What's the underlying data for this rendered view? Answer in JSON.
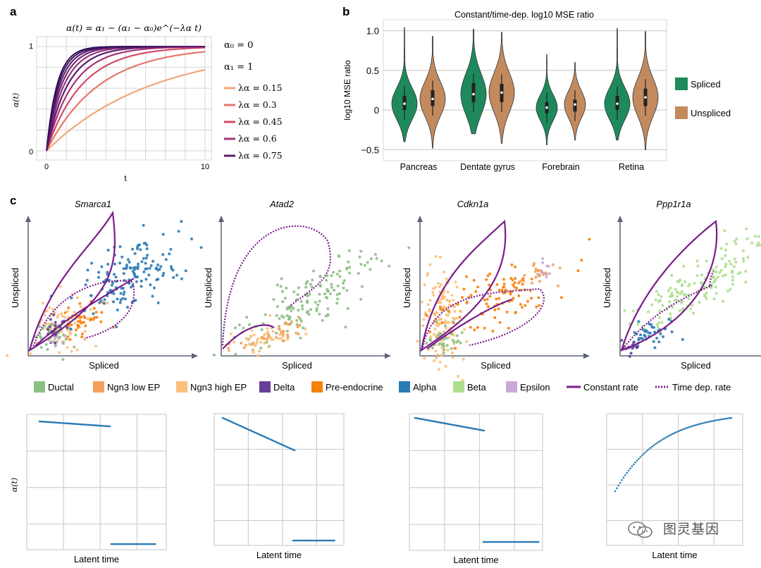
{
  "panel_labels": {
    "a": "a",
    "b": "b",
    "c": "c"
  },
  "chart_data": [
    {
      "id": "a",
      "type": "line",
      "title": "α(t) = α₁ − (α₁ − α₀)e^(−λα t)",
      "xlabel": "t",
      "ylabel": "α(t)",
      "xlim": [
        0,
        10
      ],
      "ylim": [
        0,
        1
      ],
      "xticks": [
        "0",
        "10"
      ],
      "yticks": [
        "0",
        "1"
      ],
      "grid": true,
      "params": {
        "alpha0_label": "α₀ = 0",
        "alpha1_label": "α₁ = 1"
      },
      "series": [
        {
          "name": "λα = 0.15",
          "lambda": 0.15,
          "color": "#f2a77a"
        },
        {
          "name": "λα = 0.3",
          "lambda": 0.3,
          "color": "#e8766a"
        },
        {
          "name": "λα = 0.45",
          "lambda": 0.45,
          "color": "#d04a6a"
        },
        {
          "name": "λα = 0.6",
          "lambda": 0.6,
          "color": "#a53279"
        },
        {
          "name": "λα = 0.75",
          "lambda": 0.75,
          "color": "#5e1c6e"
        }
      ],
      "extra_lines": [
        0.9,
        1.05,
        1.2,
        1.35,
        1.5
      ]
    },
    {
      "id": "b",
      "type": "violin",
      "title": "Constant/time-dep. log10 MSE ratio",
      "ylabel": "log10 MSE ratio",
      "categories": [
        "Pancreas",
        "Dentate gyrus",
        "Forebrain",
        "Retina"
      ],
      "ylim": [
        -0.55,
        1.05
      ],
      "yticks": [
        "−0.5",
        "0",
        "0.5",
        "1.0"
      ],
      "ytick_values": [
        -0.5,
        0,
        0.5,
        1.0
      ],
      "legend": [
        "Spliced",
        "Unspliced"
      ],
      "colors": {
        "Spliced": "#1e8a5c",
        "Unspliced": "#c38a5e"
      },
      "series": [
        {
          "name": "Spliced",
          "medians": [
            0.08,
            0.2,
            0.03,
            0.08
          ],
          "q1": [
            0.0,
            0.1,
            -0.04,
            0.0
          ],
          "q3": [
            0.18,
            0.34,
            0.1,
            0.18
          ],
          "min": [
            -0.4,
            -0.3,
            -0.44,
            -0.38
          ],
          "max": [
            1.04,
            1.02,
            0.7,
            1.03
          ]
        },
        {
          "name": "Unspliced",
          "medians": [
            0.14,
            0.22,
            0.07,
            0.16
          ],
          "q1": [
            0.05,
            0.1,
            -0.02,
            0.05
          ],
          "q3": [
            0.25,
            0.33,
            0.13,
            0.27
          ],
          "min": [
            -0.48,
            -0.42,
            -0.38,
            -0.5
          ],
          "max": [
            0.93,
            0.98,
            0.6,
            0.99
          ]
        }
      ]
    },
    {
      "id": "c",
      "type": "scatter",
      "xlabel": "Spliced",
      "ylabel": "Unspliced",
      "genes": [
        "Smarca1",
        "Atad2",
        "Cdkn1a",
        "Ppp1r1a"
      ],
      "legend": [
        {
          "name": "Ductal",
          "color": "#8cbf84"
        },
        {
          "name": "Ngn3 low EP",
          "color": "#f2a05c"
        },
        {
          "name": "Ngn3 high EP",
          "color": "#fbc079"
        },
        {
          "name": "Delta",
          "color": "#6a3f9a"
        },
        {
          "name": "Pre-endocrine",
          "color": "#f7810f"
        },
        {
          "name": "Alpha",
          "color": "#2b7bb5"
        },
        {
          "name": "Beta",
          "color": "#addf8d"
        },
        {
          "name": "Epsilon",
          "color": "#c7aad8"
        },
        {
          "name": "Constant rate",
          "color": "#7a1c8a",
          "style": "solid"
        },
        {
          "name": "Time dep. rate",
          "color": "#7a1c8a",
          "style": "dotted"
        }
      ]
    },
    {
      "id": "c-bottom",
      "type": "scatter",
      "xlabel": "Latent time",
      "ylabel": "α(t)",
      "point_color": "#2b7bb5"
    }
  ],
  "watermark": "图灵基因"
}
